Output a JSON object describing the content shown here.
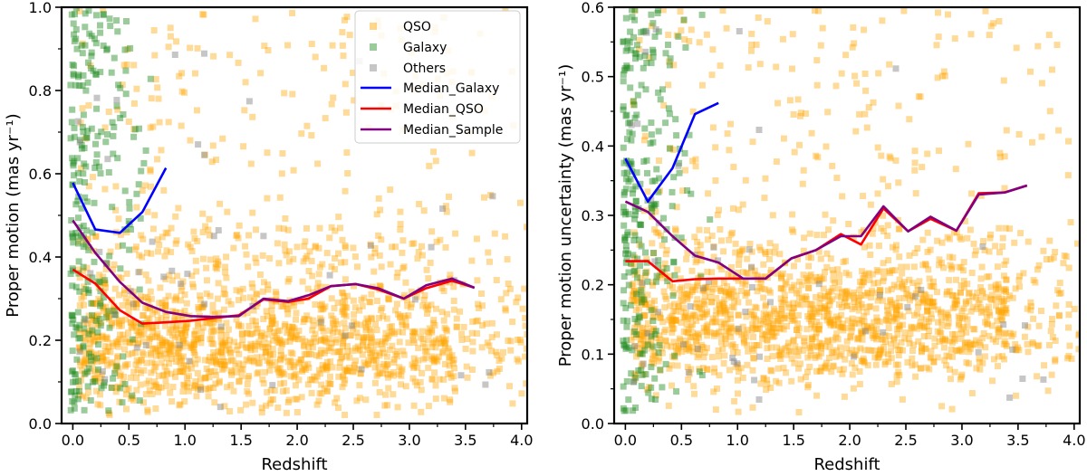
{
  "colors": {
    "qso": "#ffa500",
    "galaxy": "#228b22",
    "others": "#808080",
    "median_galaxy": "#0000ff",
    "median_qso": "#ff0000",
    "median_sample": "#800080"
  },
  "chart_data": [
    {
      "type": "scatter",
      "xlabel": "Redshift",
      "ylabel": "Proper motion (mas yr⁻¹)",
      "xlim": [
        -0.1,
        4.05
      ],
      "ylim": [
        0,
        1.0
      ],
      "xticks": [
        "0.0",
        "0.5",
        "1.0",
        "1.5",
        "2.0",
        "2.5",
        "3.0",
        "3.5",
        "4.0"
      ],
      "yticks": [
        "0.0",
        "0.2",
        "0.4",
        "0.6",
        "0.8",
        "1.0"
      ],
      "legend": {
        "position": "top-right",
        "entries": [
          "QSO",
          "Galaxy",
          "Others",
          "Median_Galaxy",
          "Median_QSO",
          "Median_Sample"
        ]
      },
      "series": [
        {
          "name": "Median_Galaxy",
          "x": [
            0.0,
            0.2,
            0.42,
            0.62,
            0.83
          ],
          "y": [
            0.578,
            0.466,
            0.458,
            0.508,
            0.614
          ]
        },
        {
          "name": "Median_QSO",
          "x": [
            0.0,
            0.2,
            0.42,
            0.62,
            0.83,
            1.05,
            1.25,
            1.48,
            1.7,
            1.92,
            2.1,
            2.3,
            2.52,
            2.72,
            2.95,
            3.15,
            3.38,
            3.58
          ],
          "y": [
            0.37,
            0.336,
            0.272,
            0.24,
            0.243,
            0.247,
            0.253,
            0.26,
            0.298,
            0.292,
            0.3,
            0.33,
            0.335,
            0.322,
            0.3,
            0.325,
            0.343,
            0.326
          ]
        },
        {
          "name": "Median_Sample",
          "x": [
            0.0,
            0.2,
            0.42,
            0.62,
            0.83,
            1.05,
            1.25,
            1.48,
            1.7,
            1.92,
            2.1,
            2.3,
            2.52,
            2.72,
            2.95,
            3.15,
            3.38,
            3.58
          ],
          "y": [
            0.488,
            0.41,
            0.34,
            0.29,
            0.268,
            0.258,
            0.256,
            0.258,
            0.3,
            0.294,
            0.308,
            0.33,
            0.335,
            0.325,
            0.3,
            0.332,
            0.348,
            0.326
          ]
        }
      ],
      "scatter_groups": [
        {
          "name": "QSO",
          "count": 1700,
          "x_range": [
            0.05,
            4.0
          ],
          "y_mode": 0.18
        },
        {
          "name": "Galaxy",
          "count": 260,
          "x_range": [
            0.0,
            0.75
          ]
        },
        {
          "name": "Others",
          "count": 55,
          "x_range": [
            0.0,
            3.8
          ]
        }
      ]
    },
    {
      "type": "scatter",
      "xlabel": "Redshift",
      "ylabel": "Proper motion uncertainty (mas yr⁻¹)",
      "xlim": [
        -0.1,
        4.05
      ],
      "ylim": [
        0,
        0.6
      ],
      "xticks": [
        "0.0",
        "0.5",
        "1.0",
        "1.5",
        "2.0",
        "2.5",
        "3.0",
        "3.5",
        "4.0"
      ],
      "yticks": [
        "0.0",
        "0.1",
        "0.2",
        "0.3",
        "0.4",
        "0.5",
        "0.6"
      ],
      "series": [
        {
          "name": "Median_Galaxy",
          "x": [
            0.0,
            0.2,
            0.42,
            0.62,
            0.83
          ],
          "y": [
            0.382,
            0.32,
            0.368,
            0.446,
            0.462
          ]
        },
        {
          "name": "Median_QSO",
          "x": [
            0.0,
            0.2,
            0.42,
            0.62,
            0.83,
            1.05,
            1.25,
            1.48,
            1.7,
            1.92,
            2.1,
            2.3,
            2.52,
            2.72,
            2.95,
            3.15,
            3.38,
            3.58
          ],
          "y": [
            0.234,
            0.234,
            0.205,
            0.208,
            0.209,
            0.209,
            0.209,
            0.238,
            0.25,
            0.273,
            0.258,
            0.31,
            0.277,
            0.295,
            0.278,
            0.332,
            0.333,
            0.343
          ]
        },
        {
          "name": "Median_Sample",
          "x": [
            0.0,
            0.2,
            0.42,
            0.62,
            0.83,
            1.05,
            1.25,
            1.48,
            1.7,
            1.92,
            2.1,
            2.3,
            2.52,
            2.72,
            2.95,
            3.15,
            3.38,
            3.58
          ],
          "y": [
            0.32,
            0.305,
            0.27,
            0.242,
            0.232,
            0.209,
            0.209,
            0.238,
            0.25,
            0.27,
            0.27,
            0.313,
            0.277,
            0.298,
            0.278,
            0.33,
            0.333,
            0.343
          ]
        }
      ],
      "scatter_groups": [
        {
          "name": "QSO",
          "count": 1700,
          "x_range": [
            0.05,
            4.0
          ],
          "y_mode": 0.15
        },
        {
          "name": "Galaxy",
          "count": 260,
          "x_range": [
            0.0,
            0.75
          ]
        },
        {
          "name": "Others",
          "count": 55,
          "x_range": [
            0.0,
            3.8
          ]
        }
      ]
    }
  ]
}
